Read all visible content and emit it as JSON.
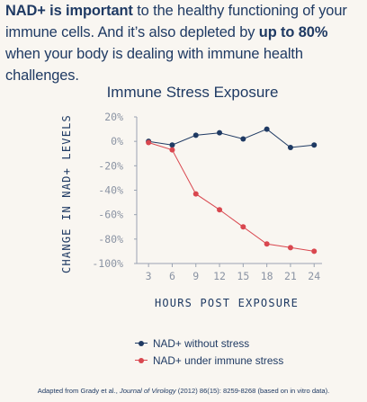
{
  "intro": {
    "bold1": "NAD+ is important",
    "text1": " to the healthy functioning of your immune cells. And it’s also depleted by ",
    "bold2": "up to 80%",
    "text2": " when your body is dealing with immune health challenges."
  },
  "footnote": {
    "prefix": "Adapted from Grady et al., ",
    "journal": "Journal of Virology",
    "suffix": " (2012) 86(15): 8259-8268 (based on in vitro data)."
  },
  "chart_data": {
    "type": "line",
    "title": "Immune Stress Exposure",
    "xlabel": "HOURS POST EXPOSURE",
    "ylabel": "CHANGE IN NAD+ LEVELS",
    "x": [
      3,
      6,
      9,
      12,
      15,
      18,
      21,
      24
    ],
    "x_ticks": [
      "3",
      "6",
      "9",
      "12",
      "15",
      "18",
      "21",
      "24"
    ],
    "y_ticks": [
      "20%",
      "0%",
      "-20%",
      "-40%",
      "-60%",
      "-80%",
      "-100%"
    ],
    "y_tick_values": [
      20,
      0,
      -20,
      -40,
      -60,
      -80,
      -100
    ],
    "ylim": [
      -100,
      20
    ],
    "grid": false,
    "legend_position": "bottom",
    "series": [
      {
        "name": "NAD+ without stress",
        "color": "#1f3a63",
        "values": [
          0,
          -3,
          5,
          7,
          2,
          10,
          -5,
          -3
        ]
      },
      {
        "name": "NAD+ under immune stress",
        "color": "#d9474f",
        "values": [
          -1,
          -7,
          -43,
          -56,
          -70,
          -84,
          -87,
          -90
        ]
      }
    ]
  }
}
